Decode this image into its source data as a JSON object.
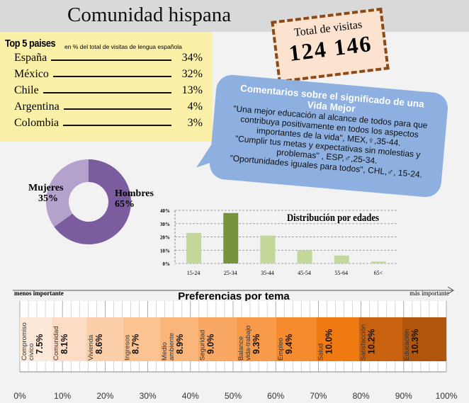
{
  "title": "Comunidad hispana",
  "top5": {
    "heading": "Top 5 paises",
    "subheading": "en % del total de visitas de lengua española",
    "countries": [
      {
        "name": "España",
        "value": "34%"
      },
      {
        "name": "México",
        "value": "32%"
      },
      {
        "name": "Chile",
        "value": "13%"
      },
      {
        "name": "Argentina",
        "value": "4%"
      },
      {
        "name": "Colombia",
        "value": "3%"
      }
    ]
  },
  "visits": {
    "label": "Total de visitas",
    "value": "124 146"
  },
  "comments": {
    "title": "Comentarios sobre el significado de una Vida Mejor",
    "quotes": [
      "\"Una mejor educación al alcance de todos para que contribuya positivamente en todos los aspectos importantes de la vida\", MEX,♀,35-44.",
      "\"Cumplir tus metas y expectativas sin molestias y problemas\" , ESP,♂,25-34.",
      "\"Oportunidades iguales para todos\", CHL,♂, 15-24."
    ]
  },
  "gender": {
    "women_label": "Mujeres",
    "women_value": "35%",
    "men_label": "Hombres",
    "men_value": "65%",
    "women_pct": 35,
    "men_pct": 65,
    "colors": {
      "women": "#b3a2cc",
      "men": "#7b5c9e"
    }
  },
  "chart_data": [
    {
      "type": "bar",
      "title": "Distribución por edades",
      "categories": [
        "15-24",
        "25-34",
        "35-44",
        "45-54",
        "55-64",
        "65<"
      ],
      "values": [
        23,
        38,
        21,
        10,
        6,
        1.5
      ],
      "ylim": [
        0,
        40
      ],
      "yticks": [
        "0%",
        "10%",
        "20%",
        "30%",
        "40%"
      ],
      "highlight": "25-34",
      "colors": {
        "normal": "#c4d79b",
        "highlight": "#76933c"
      }
    },
    {
      "type": "bar",
      "title": "Preferencias por tema",
      "left_label": "menos importante",
      "right_label": "más importante",
      "xticks": [
        "0%",
        "10%",
        "20%",
        "30%",
        "40%",
        "50%",
        "60%",
        "70%",
        "80%",
        "90%",
        "100%"
      ],
      "segments": [
        {
          "name": "Compromiso\ncívico",
          "value": 7.5,
          "label": "7.5%",
          "color": "#fde9d9"
        },
        {
          "name": "Comunidad",
          "value": 8.1,
          "label": "8.1%",
          "color": "#fcdcc4"
        },
        {
          "name": "Vivienda",
          "value": 8.6,
          "label": "8.6%",
          "color": "#fbcfa9"
        },
        {
          "name": "Ingresos",
          "value": 8.7,
          "label": "8.7%",
          "color": "#fac391"
        },
        {
          "name": "Medio\nambiente",
          "value": 8.9,
          "label": "8.9%",
          "color": "#f9b57a"
        },
        {
          "name": "Seguridad",
          "value": 9.0,
          "label": "9.0%",
          "color": "#f8a862"
        },
        {
          "name": "Balance\nvida-trabajo",
          "value": 9.3,
          "label": "9.3%",
          "color": "#f79a4a"
        },
        {
          "name": "Empleo",
          "value": 9.4,
          "label": "9.4%",
          "color": "#f58a2e"
        },
        {
          "name": "Salud",
          "value": 10.0,
          "label": "10.0%",
          "color": "#f07a12"
        },
        {
          "name": "Satisfacción",
          "value": 10.2,
          "label": "10.2%",
          "color": "#c8620e"
        },
        {
          "name": "Educación",
          "value": 10.3,
          "label": "10.3%",
          "color": "#b0550c"
        }
      ]
    }
  ]
}
